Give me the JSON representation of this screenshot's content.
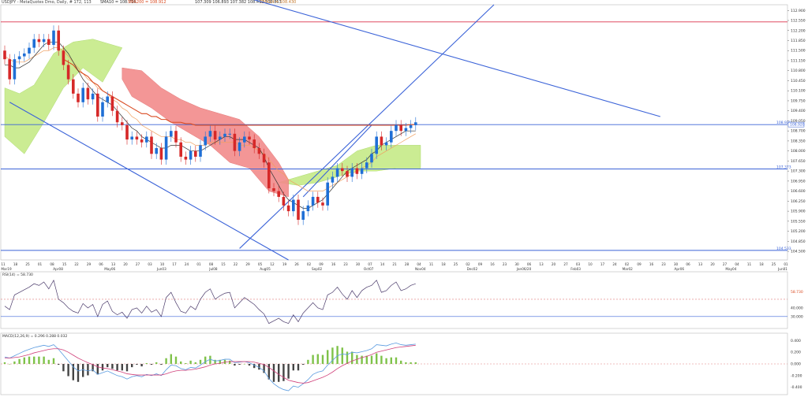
{
  "header": {
    "symbol_text": "USDJPY - MetaQuotes Dmo, Daily, # 172, 113",
    "sma_text": "SMA10 = 108.716",
    "sma200_text": "SMA200 = 108.912",
    "ichimoku_text": "107.309 106.893 107.382 108.412 106.853",
    "ema_text": "EMA14 = 108.430"
  },
  "colors": {
    "candle_up": "#1f6fd6",
    "candle_down": "#d62828",
    "sma200": "#d94a20",
    "sma10": "#333333",
    "ema": "#f0a060",
    "cloud_bull": "#c9ec8e",
    "cloud_bear": "#f28b8b",
    "trendline": "#3b63d8",
    "hline": "#3b63d8",
    "resistance": "#d9334a",
    "rsi": "#4a3a6a",
    "macd_line": "#5a9be0",
    "signal_line": "#d0407a",
    "hist_up": "#7fc24a",
    "hist_down": "#444444"
  },
  "chart_data": {
    "type": "candlestick",
    "price_axis": {
      "ylim": [
        104.2,
        113.1
      ],
      "ticks": [
        "112.900",
        "112.550",
        "112.200",
        "111.850",
        "111.500",
        "111.150",
        "110.800",
        "110.450",
        "110.100",
        "109.750",
        "109.400",
        "109.050",
        "108.700",
        "108.350",
        "108.000",
        "107.650",
        "107.300",
        "106.950",
        "106.600",
        "106.250",
        "105.900",
        "105.550",
        "105.200",
        "104.850",
        "104.500",
        "104.150"
      ],
      "current_price_label": "108.920",
      "hline_labels": [
        "108.920",
        "107.373",
        "104.533"
      ]
    },
    "date_axis": {
      "day_ticks": [
        "11",
        "18",
        "25",
        "01",
        "08",
        "15",
        "22",
        "29",
        "06",
        "13",
        "20",
        "27",
        "03",
        "10",
        "17",
        "24",
        "01",
        "08",
        "15",
        "22",
        "29",
        "05",
        "12",
        "19",
        "26",
        "02",
        "09",
        "16",
        "23",
        "30",
        "07",
        "14",
        "21",
        "28",
        "04",
        "11",
        "18",
        "25",
        "02",
        "09",
        "16",
        "23",
        "30",
        "06",
        "13",
        "20",
        "27",
        "03",
        "10",
        "17",
        "24",
        "02",
        "09",
        "16",
        "23",
        "30",
        "06",
        "13",
        "20",
        "27",
        "04",
        "11",
        "18",
        "25",
        "01"
      ],
      "month_labels": [
        "Mar19",
        "Apr08",
        "May06",
        "Jun03",
        "Jul08",
        "Aug05",
        "Sep02",
        "Oct07",
        "Nov04",
        "Dec02",
        "Jan06/20",
        "Feb03",
        "Mar02",
        "Apr06",
        "May04",
        "Jun01"
      ]
    },
    "ohlc_open": [
      111.5,
      111.2,
      110.5,
      111.2,
      111.3,
      111.4,
      111.6,
      111.9,
      111.8,
      111.9,
      111.7,
      112.2,
      111.5,
      111.0,
      110.5,
      110.0,
      109.7,
      110.2,
      109.8,
      110.0,
      109.2,
      109.7,
      109.9,
      109.4,
      109.0,
      108.9,
      108.4,
      108.5,
      108.4,
      108.3,
      108.5,
      107.9,
      108.1,
      107.7,
      108.5,
      108.7,
      108.3,
      107.8,
      107.7,
      108.0,
      107.8,
      108.2,
      108.5,
      108.7,
      108.4,
      108.5,
      108.6,
      108.6,
      108.0,
      108.3,
      108.5,
      108.4,
      108.1,
      107.9,
      107.6,
      106.7,
      106.6,
      106.4,
      106.1,
      105.9,
      106.3,
      105.6,
      105.9,
      106.1,
      106.4,
      106.2,
      106.1,
      106.9,
      107.1,
      107.4,
      107.3,
      107.1,
      107.4,
      107.2,
      107.4,
      107.6,
      107.9,
      108.5,
      108.2,
      108.3,
      108.7,
      108.9,
      108.7,
      108.8,
      108.9
    ],
    "ohlc_close": [
      111.2,
      110.5,
      111.2,
      111.3,
      111.4,
      111.6,
      111.9,
      111.8,
      111.9,
      111.7,
      112.2,
      111.5,
      111.0,
      110.5,
      110.0,
      109.7,
      110.2,
      109.8,
      110.0,
      109.2,
      109.7,
      109.9,
      109.4,
      109.0,
      108.9,
      108.4,
      108.5,
      108.4,
      108.3,
      108.5,
      107.9,
      108.1,
      107.7,
      108.5,
      108.7,
      108.3,
      107.8,
      107.7,
      108.0,
      107.8,
      108.2,
      108.5,
      108.7,
      108.4,
      108.5,
      108.6,
      108.6,
      108.0,
      108.3,
      108.5,
      108.4,
      108.1,
      107.9,
      107.6,
      106.7,
      106.6,
      106.4,
      106.1,
      105.9,
      106.3,
      105.6,
      105.9,
      106.1,
      106.4,
      106.2,
      106.1,
      106.9,
      107.1,
      107.4,
      107.3,
      107.1,
      107.4,
      107.2,
      107.4,
      107.6,
      107.9,
      108.5,
      108.2,
      108.3,
      108.7,
      108.9,
      108.7,
      108.8,
      108.9,
      109.0
    ],
    "sma200": [
      null,
      null,
      null,
      null,
      null,
      null,
      null,
      null,
      null,
      null,
      null,
      null,
      111.2,
      111.1,
      111.0,
      110.8,
      110.7,
      110.6,
      110.4,
      110.3,
      110.1,
      110.0,
      109.9,
      109.8,
      109.7,
      109.6,
      109.5,
      109.4,
      109.3,
      109.3,
      109.2,
      109.2,
      109.1,
      109.1,
      109.0,
      109.0,
      109.0,
      108.95,
      108.95,
      108.9,
      108.9,
      108.9,
      108.9,
      108.9,
      108.9,
      108.9,
      108.9,
      108.9,
      108.9,
      108.9,
      108.9,
      108.9,
      108.9,
      108.9,
      108.9,
      108.9,
      108.9,
      108.9,
      108.9,
      108.9,
      108.9,
      108.9,
      108.9,
      108.9,
      108.9,
      108.9,
      108.9,
      108.9,
      108.9,
      108.9,
      108.9,
      108.9,
      108.9,
      108.9,
      108.9,
      108.9,
      108.9,
      108.9,
      108.9,
      108.9,
      108.9,
      108.9,
      108.9,
      108.92,
      108.92
    ],
    "sma10": [
      111.0,
      111.0,
      110.9,
      110.9,
      111.0,
      111.1,
      111.3,
      111.5,
      111.7,
      111.8,
      111.8,
      111.8,
      111.6,
      111.4,
      111.1,
      110.8,
      110.5,
      110.3,
      110.1,
      109.9,
      109.8,
      109.7,
      109.6,
      109.4,
      109.2,
      109.0,
      108.8,
      108.7,
      108.5,
      108.4,
      108.3,
      108.2,
      108.1,
      108.1,
      108.2,
      108.2,
      108.2,
      108.1,
      108.0,
      108.0,
      108.0,
      108.1,
      108.2,
      108.3,
      108.4,
      108.5,
      108.5,
      108.4,
      108.4,
      108.4,
      108.3,
      108.2,
      108.1,
      107.8,
      107.4,
      107.1,
      106.8,
      106.5,
      106.3,
      106.2,
      106.1,
      106.0,
      106.0,
      106.1,
      106.2,
      106.3,
      106.5,
      106.7,
      106.9,
      107.1,
      107.3,
      107.4,
      107.5,
      107.6,
      107.7,
      107.9,
      108.0,
      108.2,
      108.3,
      108.4,
      108.5,
      108.6,
      108.7,
      108.7,
      108.7
    ],
    "ema": [
      111.3,
      111.2,
      111.1,
      111.1,
      111.1,
      111.2,
      111.3,
      111.4,
      111.5,
      111.5,
      111.6,
      111.6,
      111.5,
      111.3,
      111.1,
      110.9,
      110.7,
      110.5,
      110.4,
      110.2,
      110.1,
      110.0,
      109.8,
      109.7,
      109.5,
      109.4,
      109.2,
      109.1,
      108.9,
      108.8,
      108.7,
      108.6,
      108.5,
      108.5,
      108.5,
      108.4,
      108.4,
      108.3,
      108.3,
      108.2,
      108.2,
      108.2,
      108.3,
      108.3,
      108.3,
      108.3,
      108.3,
      108.3,
      108.2,
      108.2,
      108.2,
      108.1,
      108.0,
      107.9,
      107.7,
      107.5,
      107.3,
      107.2,
      107.0,
      106.9,
      106.8,
      106.7,
      106.6,
      106.6,
      106.6,
      106.6,
      106.7,
      106.8,
      106.9,
      107.0,
      107.1,
      107.2,
      107.3,
      107.4,
      107.5,
      107.6,
      107.8,
      107.9,
      108.0,
      108.1,
      108.2,
      108.3,
      108.4,
      108.5,
      108.6
    ],
    "rsi": [
      42,
      38,
      55,
      58,
      61,
      64,
      68,
      66,
      70,
      62,
      72,
      50,
      46,
      40,
      36,
      34,
      45,
      40,
      44,
      30,
      44,
      48,
      36,
      32,
      35,
      28,
      38,
      40,
      34,
      42,
      35,
      38,
      30,
      52,
      58,
      46,
      36,
      34,
      42,
      38,
      50,
      58,
      62,
      50,
      54,
      57,
      58,
      40,
      46,
      52,
      48,
      44,
      38,
      33,
      22,
      25,
      28,
      24,
      22,
      32,
      24,
      34,
      40,
      46,
      40,
      38,
      55,
      58,
      64,
      56,
      50,
      60,
      52,
      60,
      64,
      66,
      72,
      58,
      60,
      66,
      70,
      60,
      62,
      66,
      68
    ],
    "rsi_label": "58.730",
    "rsi_ticks": [
      "58.730",
      "40.000",
      "30.000"
    ],
    "macd": [
      0.12,
      0.1,
      0.14,
      0.18,
      0.22,
      0.25,
      0.28,
      0.3,
      0.32,
      0.3,
      0.33,
      0.25,
      0.15,
      0.05,
      -0.05,
      -0.12,
      -0.1,
      -0.12,
      -0.1,
      -0.18,
      -0.15,
      -0.12,
      -0.16,
      -0.2,
      -0.22,
      -0.26,
      -0.22,
      -0.2,
      -0.22,
      -0.18,
      -0.2,
      -0.17,
      -0.2,
      -0.1,
      -0.02,
      -0.03,
      -0.08,
      -0.1,
      -0.06,
      -0.07,
      -0.02,
      0.04,
      0.08,
      0.05,
      0.06,
      0.08,
      0.08,
      0.02,
      0.03,
      0.04,
      0.02,
      -0.02,
      -0.06,
      -0.12,
      -0.25,
      -0.34,
      -0.4,
      -0.44,
      -0.46,
      -0.38,
      -0.4,
      -0.34,
      -0.27,
      -0.18,
      -0.14,
      -0.12,
      -0.02,
      0.06,
      0.14,
      0.17,
      0.16,
      0.2,
      0.19,
      0.21,
      0.23,
      0.26,
      0.33,
      0.32,
      0.31,
      0.34,
      0.36,
      0.33,
      0.32,
      0.33,
      0.34
    ],
    "signal": [
      0.1,
      0.1,
      0.11,
      0.12,
      0.14,
      0.16,
      0.19,
      0.21,
      0.23,
      0.25,
      0.26,
      0.26,
      0.24,
      0.2,
      0.15,
      0.1,
      0.06,
      0.02,
      -0.01,
      -0.05,
      -0.07,
      -0.08,
      -0.1,
      -0.12,
      -0.14,
      -0.17,
      -0.18,
      -0.19,
      -0.19,
      -0.19,
      -0.19,
      -0.19,
      -0.19,
      -0.17,
      -0.14,
      -0.12,
      -0.11,
      -0.11,
      -0.1,
      -0.09,
      -0.07,
      -0.05,
      -0.02,
      0.0,
      0.01,
      0.03,
      0.04,
      0.04,
      0.04,
      0.04,
      0.04,
      0.03,
      0.01,
      -0.01,
      -0.06,
      -0.12,
      -0.18,
      -0.23,
      -0.28,
      -0.3,
      -0.32,
      -0.33,
      -0.32,
      -0.29,
      -0.26,
      -0.23,
      -0.19,
      -0.14,
      -0.08,
      -0.03,
      0.01,
      0.05,
      0.08,
      0.11,
      0.13,
      0.16,
      0.2,
      0.22,
      0.24,
      0.26,
      0.28,
      0.29,
      0.3,
      0.31,
      0.32
    ],
    "macd_label": "MACD(12,26,9) = 0.296 0.288 0.032",
    "macd_ticks": [
      "0.400",
      "0.200",
      "0.000",
      "-0.200",
      "-0.400"
    ],
    "rsi_header": "RSI(14) = 58.730",
    "bull_clouds": [
      {
        "x": [
          0,
          3,
          6,
          10,
          14,
          18,
          22,
          24,
          20,
          16,
          12,
          8,
          4,
          0
        ],
        "y": [
          110.2,
          110.0,
          110.3,
          111.4,
          111.8,
          111.9,
          111.7,
          111.6,
          110.4,
          110.9,
          110.2,
          109.0,
          107.9,
          108.5
        ]
      },
      {
        "x": [
          56,
          60,
          64,
          68,
          72,
          76,
          80,
          85,
          85,
          80,
          76,
          72,
          68,
          64,
          60,
          56
        ],
        "y": [
          106.9,
          107.1,
          107.3,
          107.5,
          108.0,
          108.2,
          108.2,
          108.2,
          107.4,
          107.4,
          107.3,
          107.3,
          107.1,
          106.9,
          106.8,
          106.9
        ]
      }
    ],
    "bear_clouds": [
      {
        "x": [
          24,
          28,
          32,
          36,
          40,
          44,
          48,
          52,
          56,
          58,
          58,
          54,
          50,
          46,
          42,
          38,
          34,
          30,
          26,
          24
        ],
        "y": [
          110.9,
          110.8,
          110.2,
          109.8,
          109.5,
          109.3,
          109.1,
          108.5,
          107.6,
          107.0,
          106.4,
          106.6,
          107.4,
          107.6,
          108.2,
          108.6,
          109.0,
          109.5,
          109.9,
          110.5
        ]
      }
    ]
  },
  "overlays": {
    "h_resistance": 112.5,
    "h_current": 108.92,
    "h_mid": 107.373,
    "h_low": 104.533,
    "down_channel_top": {
      "x1": 28,
      "y1": 114.4,
      "x2": 134,
      "y2": 109.2
    },
    "down_channel_bottom": {
      "x1": 1,
      "y1": 109.7,
      "x2": 58,
      "y2": 104.2
    },
    "up_trend_1": {
      "x1": 48,
      "y1": 104.6,
      "x2": 100,
      "y2": 113.1
    },
    "up_trend_2": {
      "x1": 61,
      "y1": 106.4,
      "x2": 75,
      "y2": 108.9
    }
  }
}
